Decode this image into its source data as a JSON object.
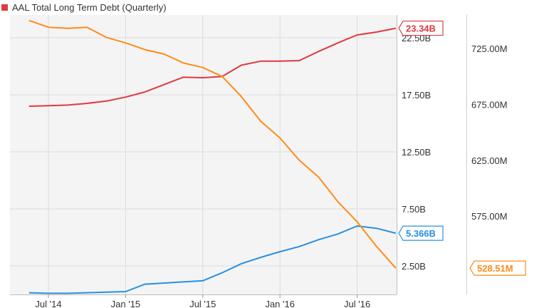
{
  "legend": {
    "label": "AAL Total Long Term Debt (Quarterly)",
    "color": "#e0393e"
  },
  "chart_data": {
    "type": "line",
    "title": "AAL Total Long Term Debt (Quarterly)",
    "x_tick_labels": [
      "Jul '14",
      "Jan '15",
      "Jul '15",
      "Jan '16",
      "Jul '16"
    ],
    "x_tick_quarters": [
      0,
      2,
      4,
      6,
      8
    ],
    "left_axis": {
      "ticks": [
        2.5,
        7.5,
        12.5,
        17.5,
        22.5
      ],
      "tick_labels": [
        "2.50B",
        "7.50B",
        "12.50B",
        "17.50B",
        "22.50B"
      ],
      "range": [
        0,
        24.5
      ]
    },
    "right_axis": {
      "ticks": [
        575,
        625,
        675,
        725
      ],
      "tick_labels": [
        "575.00M",
        "625.00M",
        "675.00M",
        "725.00M"
      ],
      "range": [
        505,
        755
      ]
    },
    "grid": true,
    "series": [
      {
        "axis": "left",
        "color": "#e0393e",
        "x": [
          -0.5,
          0,
          0.5,
          1,
          1.5,
          2,
          2.5,
          3,
          3.5,
          4,
          4.5,
          5,
          5.5,
          6,
          6.5,
          7,
          7.5,
          8,
          8.5,
          9
        ],
        "values": [
          16.5,
          16.55,
          16.6,
          16.75,
          16.95,
          17.3,
          17.75,
          18.4,
          19.05,
          19.0,
          19.1,
          20.1,
          20.45,
          20.45,
          20.5,
          21.3,
          22.05,
          22.75,
          23.0,
          23.34
        ],
        "tag": "23.34B"
      },
      {
        "axis": "left",
        "color": "#2a8fe0",
        "x": [
          -0.5,
          0,
          0.5,
          1,
          1.5,
          2,
          2.5,
          3,
          3.5,
          4,
          4.5,
          5,
          5.5,
          6,
          6.5,
          7,
          7.5,
          8,
          8.5,
          9
        ],
        "values": [
          0.15,
          0.1,
          0.1,
          0.15,
          0.2,
          0.25,
          0.9,
          1.0,
          1.1,
          1.2,
          1.9,
          2.7,
          3.25,
          3.75,
          4.2,
          4.8,
          5.3,
          6.0,
          5.8,
          5.366
        ],
        "tag": "5.366B"
      },
      {
        "axis": "right",
        "color": "#ff8b1a",
        "x": [
          -0.5,
          0,
          0.5,
          1,
          1.5,
          2,
          2.5,
          3,
          3.5,
          4,
          4.5,
          5,
          5.5,
          6,
          6.5,
          7,
          7.5,
          8,
          8.5,
          9
        ],
        "values": [
          750,
          744,
          743,
          744,
          735,
          730,
          724,
          720,
          712,
          708,
          700,
          682,
          660,
          645,
          625,
          610,
          588,
          570,
          548,
          528.51
        ],
        "tag": "528.51M"
      }
    ]
  }
}
